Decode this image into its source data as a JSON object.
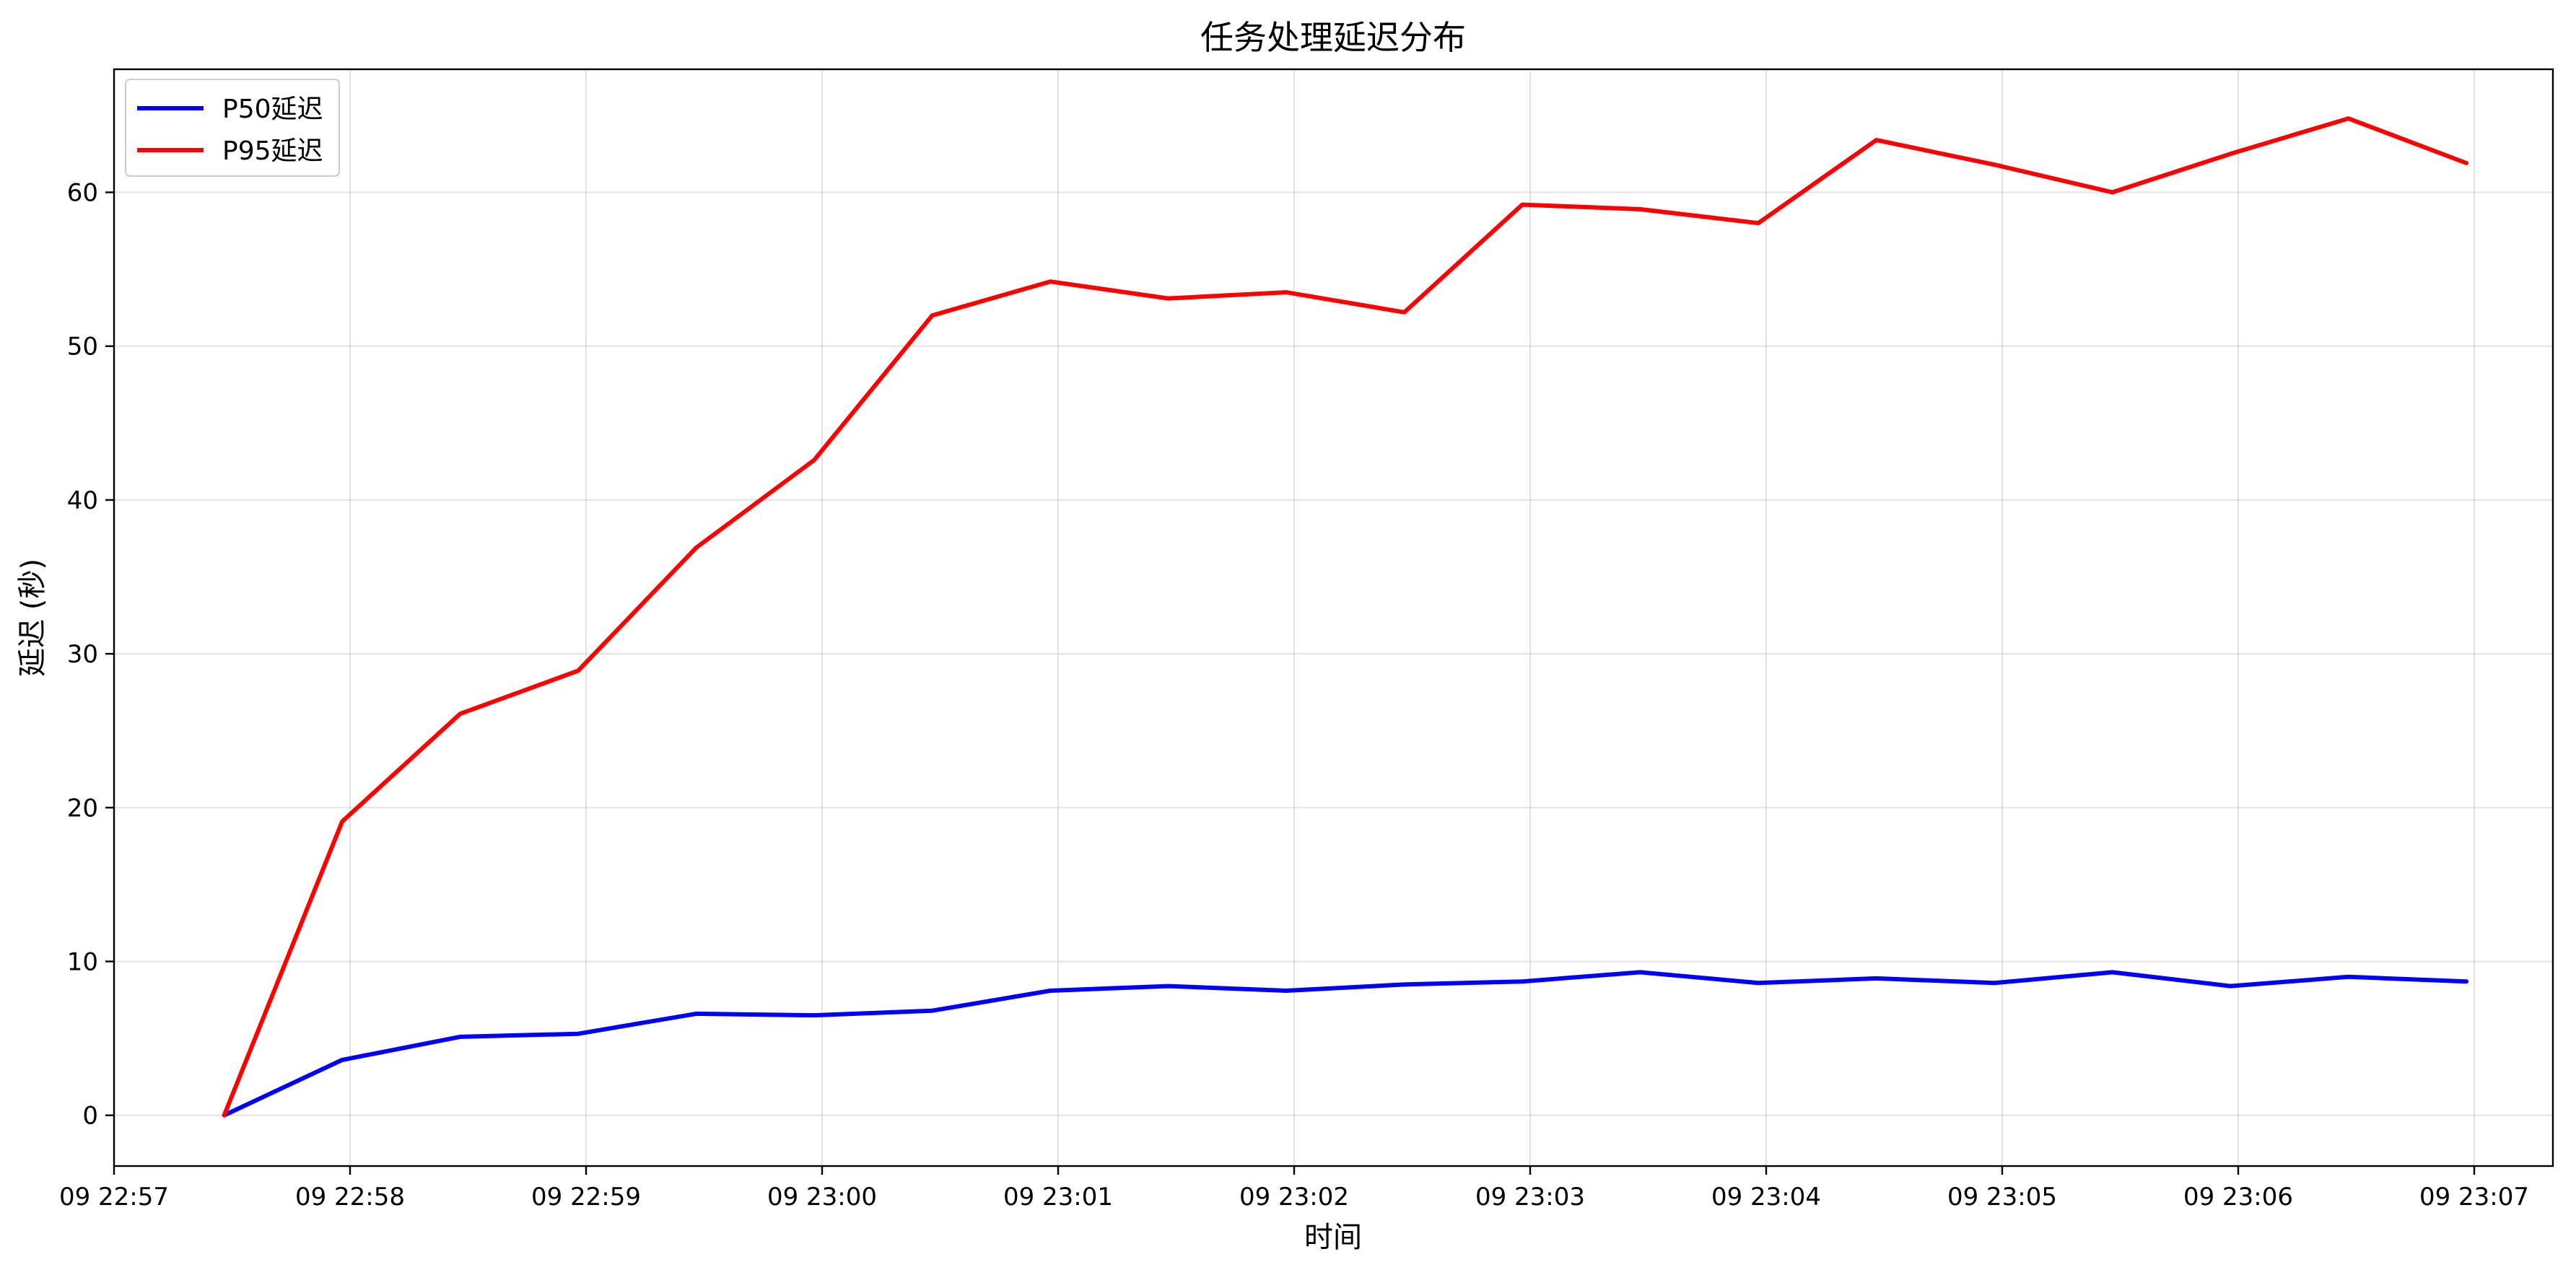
{
  "chart_data": {
    "type": "line",
    "title": "任务处理延迟分布",
    "xlabel": "时间",
    "ylabel": "延迟 (秒)",
    "x_ticks": [
      "09 22:57",
      "09 22:58",
      "09 22:59",
      "09 23:00",
      "09 23:01",
      "09 23:02",
      "09 23:03",
      "09 23:04",
      "09 23:05",
      "09 23:06",
      "09 23:07"
    ],
    "x_tick_values": [
      "22:57:00",
      "22:58:00",
      "22:59:00",
      "23:00:00",
      "23:01:00",
      "23:02:00",
      "23:03:00",
      "23:04:00",
      "23:05:00",
      "23:06:00",
      "23:07:00"
    ],
    "xlim": [
      "22:57:00",
      "23:07:20"
    ],
    "y_ticks": [
      0,
      10,
      20,
      30,
      40,
      50,
      60
    ],
    "ylim": [
      -3.3,
      68
    ],
    "grid": true,
    "legend_position": "top-left",
    "x": [
      "22:57:28",
      "22:57:58",
      "22:58:28",
      "22:58:58",
      "22:59:28",
      "22:59:58",
      "23:00:28",
      "23:00:58",
      "23:01:28",
      "23:01:58",
      "23:02:28",
      "23:02:58",
      "23:03:28",
      "23:03:58",
      "23:04:28",
      "23:04:58",
      "23:05:28",
      "23:05:58",
      "23:06:28",
      "23:06:58"
    ],
    "series": [
      {
        "name": "P50延迟",
        "color": "#0000ff",
        "values": [
          0,
          3.6,
          5.1,
          5.3,
          6.6,
          6.5,
          6.8,
          8.1,
          8.4,
          8.1,
          8.5,
          8.7,
          9.3,
          8.6,
          8.9,
          8.6,
          9.3,
          8.4,
          9.0,
          8.7
        ]
      },
      {
        "name": "P95延迟",
        "color": "#ff0000",
        "values": [
          0,
          19.1,
          26.1,
          28.9,
          36.9,
          42.6,
          52.0,
          54.2,
          53.1,
          53.5,
          52.2,
          59.2,
          58.9,
          58.0,
          63.4,
          61.8,
          60.0,
          62.5,
          64.8,
          61.9
        ]
      }
    ]
  }
}
